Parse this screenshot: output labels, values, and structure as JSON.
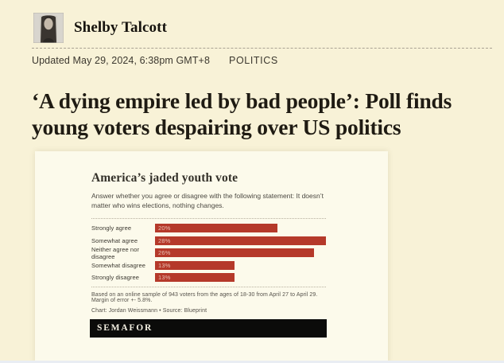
{
  "colors": {
    "page_bg": "#f8f2d7",
    "card_bg": "#fcfaeb",
    "bar_red": "#b5392a",
    "logo_bg": "#0b0b0a"
  },
  "author": {
    "name": "Shelby Talcott"
  },
  "meta": {
    "updated": "Updated May 29, 2024, 6:38pm GMT+8",
    "category": "POLITICS"
  },
  "headline": "‘A dying empire led by bad people’: Poll finds young voters despairing over US politics",
  "chart_card": {
    "title": "America’s jaded youth vote",
    "subtitle": "Answer whether you agree or disagree with the following statement: It doesn’t matter who wins elections, nothing changes.",
    "note": "Based on an online sample of 943 voters from the ages of 18-30 from April 27 to April 29. Margin of error +- 5.8%.",
    "credit": "Chart: Jordan Weissmann • Source: Blueprint",
    "logo": "SEMAFOR"
  },
  "chart_data": {
    "type": "bar",
    "orientation": "horizontal",
    "title": "America’s jaded youth vote",
    "subtitle": "Answer whether you agree or disagree with the following statement: It doesn’t matter who wins elections, nothing changes.",
    "categories": [
      "Strongly agree",
      "Somewhat agree",
      "Neither agree nor disagree",
      "Somewhat disagree",
      "Strongly disagree"
    ],
    "values": [
      20,
      28,
      26,
      13,
      13
    ],
    "value_labels": [
      "20%",
      "28%",
      "26%",
      "13%",
      "13%"
    ],
    "xlim": [
      0,
      28
    ],
    "bar_color": "#b5392a",
    "value_label_position": "inside-left",
    "grid": false,
    "legend": false
  }
}
